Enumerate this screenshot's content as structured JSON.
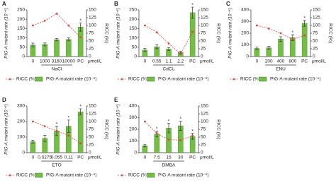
{
  "chart_data": [
    {
      "type": "bar_line",
      "panel": "A",
      "ylabel": "PIG-A mutant rate (10⁻⁶)",
      "y2label": "RICC (%)",
      "xlabel": "μmol/L",
      "group": "NaCl",
      "categories": [
        "0",
        "1000",
        "3160",
        "10000",
        "PC"
      ],
      "ylim": [
        0,
        250
      ],
      "yticks": [
        0,
        50,
        100,
        150,
        200,
        250
      ],
      "y2lim": [
        0,
        150
      ],
      "y2ticks": [
        0,
        25,
        50,
        75,
        100,
        125,
        150
      ],
      "series": [
        {
          "name": "RICC (%)",
          "color": "#e0403a",
          "axis": "y2",
          "values": [
            100,
            115,
            138,
            100,
            62
          ]
        },
        {
          "name": "PIG-A mutant rate (10⁻⁶)",
          "color": "#72bf44",
          "values": [
            62,
            65,
            90,
            92,
            158
          ],
          "errors": [
            10,
            8,
            6,
            8,
            22
          ],
          "stars": [
            null,
            null,
            null,
            null,
            "*"
          ]
        }
      ]
    },
    {
      "type": "bar_line",
      "panel": "B",
      "ylabel": "PIG-A mutant rate (10⁻⁶)",
      "y2label": "RICC (%)",
      "xlabel": "μmol/L",
      "group": "CdCl₂",
      "categories": [
        "0",
        "0.55",
        "1.1",
        "2.2",
        "PC"
      ],
      "ylim": [
        0,
        250
      ],
      "yticks": [
        0,
        50,
        100,
        150,
        200,
        250
      ],
      "y2lim": [
        0,
        150
      ],
      "y2ticks": [
        0,
        25,
        50,
        75,
        100,
        125,
        150
      ],
      "series": [
        {
          "name": "RICC (%)",
          "color": "#e0403a",
          "axis": "y2",
          "values": [
            100,
            78,
            42,
            8,
            80
          ]
        },
        {
          "name": "PIG-A mutant rate (10⁻⁶)",
          "color": "#72bf44",
          "values": [
            35,
            52,
            40,
            22,
            235
          ],
          "errors": [
            8,
            10,
            8,
            6,
            30
          ],
          "stars": [
            null,
            null,
            null,
            null,
            "*"
          ]
        }
      ]
    },
    {
      "type": "bar_line",
      "panel": "C",
      "ylabel": "PIG-A mutant rate (10⁻⁶)",
      "y2label": "RICC (%)",
      "xlabel": "μmol/L",
      "group": "ENU",
      "categories": [
        "0",
        "200",
        "400",
        "800",
        "PC"
      ],
      "ylim": [
        0,
        400
      ],
      "yticks": [
        0,
        100,
        200,
        300,
        400
      ],
      "y2lim": [
        0,
        150
      ],
      "y2ticks": [
        0,
        25,
        50,
        75,
        100,
        125,
        150
      ],
      "series": [
        {
          "name": "RICC (%)",
          "color": "#e0403a",
          "axis": "y2",
          "values": [
            100,
            90,
            75,
            55,
            68
          ]
        },
        {
          "name": "PIG-A mutant rate (10⁻⁶)",
          "color": "#72bf44",
          "values": [
            70,
            75,
            150,
            162,
            285
          ],
          "errors": [
            10,
            12,
            20,
            25,
            25
          ],
          "stars": [
            null,
            null,
            "*",
            "*",
            "*"
          ]
        }
      ]
    },
    {
      "type": "bar_line",
      "panel": "D",
      "ylabel": "PIG-A mutant rate (10⁻⁶)",
      "y2label": "RICC (%)",
      "xlabel": "μmol/L",
      "group": "ETO",
      "categories": [
        "0",
        "0.0275",
        "0.055",
        "0.11",
        "PC"
      ],
      "ylim": [
        0,
        300
      ],
      "yticks": [
        0,
        100,
        200,
        300
      ],
      "y2lim": [
        0,
        150
      ],
      "y2ticks": [
        0,
        25,
        50,
        75,
        100,
        125,
        150
      ],
      "series": [
        {
          "name": "RICC (%)",
          "color": "#e0403a",
          "axis": "y2",
          "values": [
            100,
            85,
            70,
            55,
            30
          ]
        },
        {
          "name": "PIG-A mutant rate (10⁻⁶)",
          "color": "#72bf44",
          "values": [
            70,
            92,
            140,
            170,
            262
          ],
          "errors": [
            10,
            20,
            30,
            40,
            20
          ],
          "stars": [
            null,
            null,
            "*",
            "*",
            "*"
          ]
        }
      ]
    },
    {
      "type": "bar_line",
      "panel": "E",
      "ylabel": "PIG-A mutant rate (10⁻⁶)",
      "y2label": "RICC (%)",
      "xlabel": "μmol/L",
      "group": "DMBA",
      "categories": [
        "0",
        "7.5",
        "15",
        "30",
        "PC"
      ],
      "ylim": [
        0,
        400
      ],
      "yticks": [
        0,
        100,
        200,
        300,
        400
      ],
      "y2lim": [
        0,
        150
      ],
      "y2ticks": [
        0,
        25,
        50,
        75,
        100,
        125,
        150
      ],
      "series": [
        {
          "name": "RICC (%)",
          "color": "#e0403a",
          "axis": "y2",
          "values": [
            100,
            62,
            42,
            40,
            55
          ]
        },
        {
          "name": "PIG-A mutant rate (10⁻⁶)",
          "color": "#72bf44",
          "values": [
            60,
            160,
            210,
            230,
            140
          ],
          "errors": [
            10,
            25,
            40,
            40,
            25
          ],
          "stars": [
            null,
            "*",
            "*",
            "*",
            "*"
          ]
        }
      ]
    }
  ]
}
